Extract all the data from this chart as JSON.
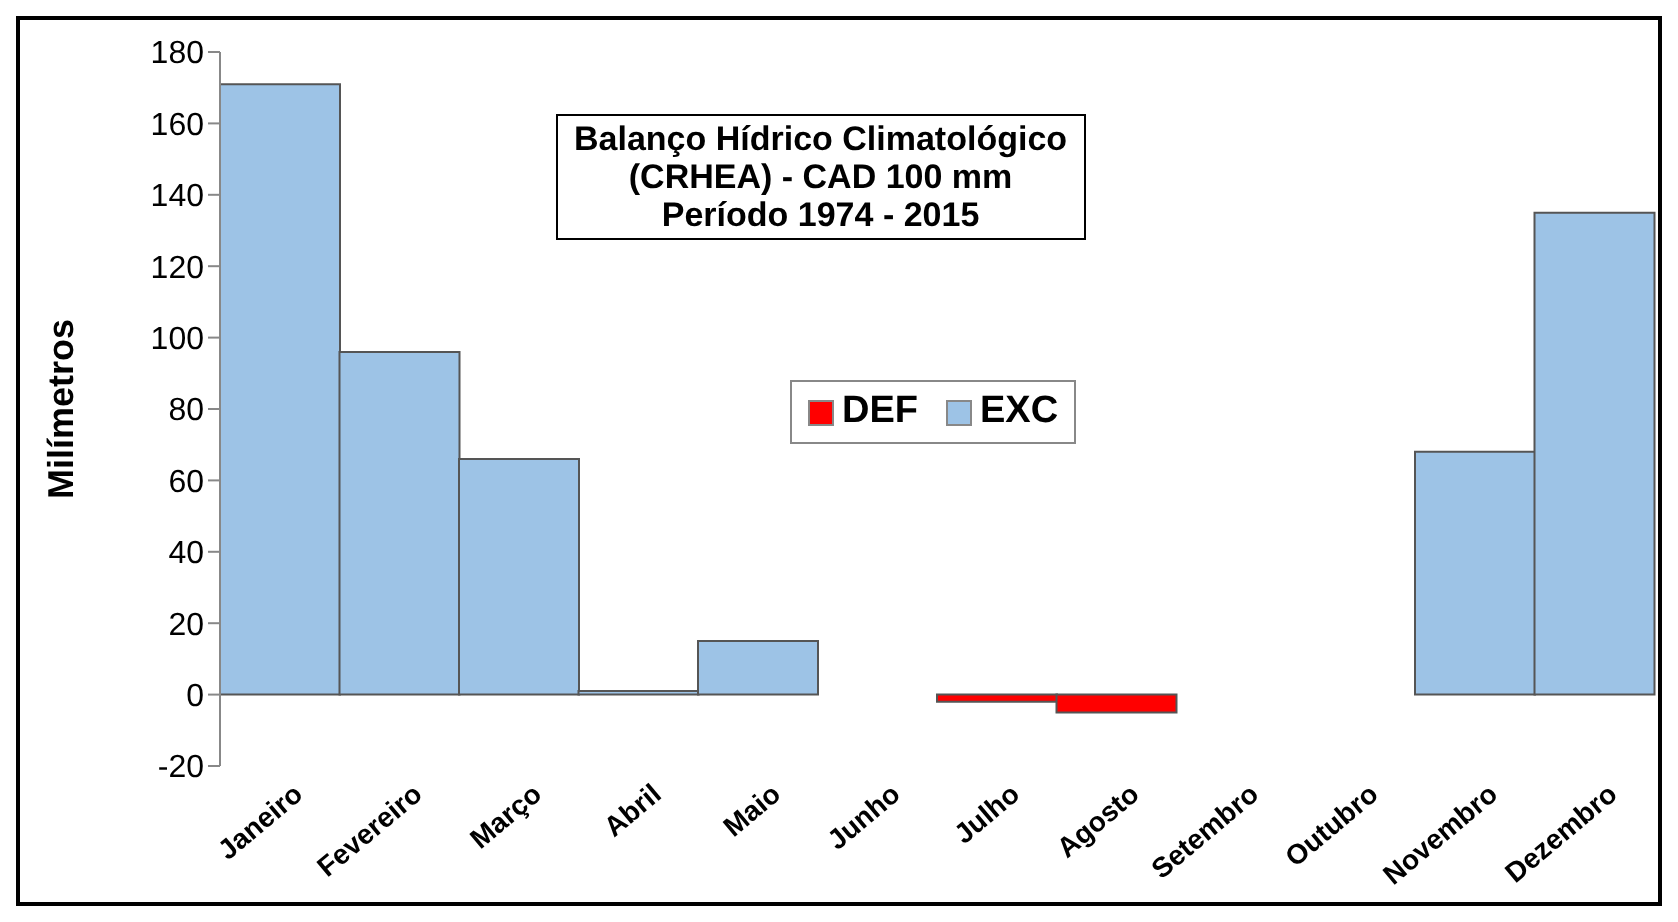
{
  "chart_data": {
    "type": "bar",
    "title": "Balanço Hídrico Climatológico\n(CRHEA) - CAD 100 mm\nPeríodo 1974 - 2015",
    "ylabel": "Milímetros",
    "categories": [
      "Janeiro",
      "Fevereiro",
      "Março",
      "Abril",
      "Maio",
      "Junho",
      "Julho",
      "Agosto",
      "Setembro",
      "Outubro",
      "Novembro",
      "Dezembro"
    ],
    "series": [
      {
        "name": "DEF",
        "color": "#ff0000",
        "values": [
          0,
          0,
          0,
          0,
          0,
          0,
          -2,
          -5,
          0,
          0,
          0,
          0
        ]
      },
      {
        "name": "EXC",
        "color": "#9dc3e6",
        "values": [
          171,
          96,
          66,
          1,
          15,
          0,
          0,
          0,
          0,
          0,
          68,
          135
        ]
      }
    ],
    "stacked": true,
    "ylim": [
      -20,
      180
    ],
    "yticks": [
      -20,
      0,
      20,
      40,
      60,
      80,
      100,
      120,
      140,
      160,
      180
    ],
    "grid": false,
    "legend": "center"
  }
}
